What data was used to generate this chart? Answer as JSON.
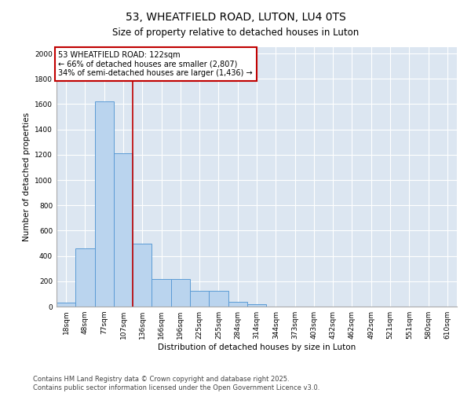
{
  "title": "53, WHEATFIELD ROAD, LUTON, LU4 0TS",
  "subtitle": "Size of property relative to detached houses in Luton",
  "xlabel": "Distribution of detached houses by size in Luton",
  "ylabel": "Number of detached properties",
  "categories": [
    "18sqm",
    "48sqm",
    "77sqm",
    "107sqm",
    "136sqm",
    "166sqm",
    "196sqm",
    "225sqm",
    "255sqm",
    "284sqm",
    "314sqm",
    "344sqm",
    "373sqm",
    "403sqm",
    "432sqm",
    "462sqm",
    "492sqm",
    "521sqm",
    "551sqm",
    "580sqm",
    "610sqm"
  ],
  "values": [
    30,
    460,
    1620,
    1210,
    500,
    215,
    215,
    125,
    125,
    35,
    20,
    0,
    0,
    0,
    0,
    0,
    0,
    0,
    0,
    0,
    0
  ],
  "bar_color": "#bad4ee",
  "bar_edge_color": "#5b9bd5",
  "vline_x": 3.5,
  "vline_color": "#c00000",
  "annotation_text": "53 WHEATFIELD ROAD: 122sqm\n← 66% of detached houses are smaller (2,807)\n34% of semi-detached houses are larger (1,436) →",
  "annotation_box_color": "#ffffff",
  "annotation_box_edge": "#c00000",
  "ylim": [
    0,
    2050
  ],
  "yticks": [
    0,
    200,
    400,
    600,
    800,
    1000,
    1200,
    1400,
    1600,
    1800,
    2000
  ],
  "bg_color": "#dce6f1",
  "footer_line1": "Contains HM Land Registry data © Crown copyright and database right 2025.",
  "footer_line2": "Contains public sector information licensed under the Open Government Licence v3.0.",
  "title_fontsize": 10,
  "axis_label_fontsize": 7.5,
  "tick_fontsize": 6.5,
  "annotation_fontsize": 7,
  "footer_fontsize": 6
}
